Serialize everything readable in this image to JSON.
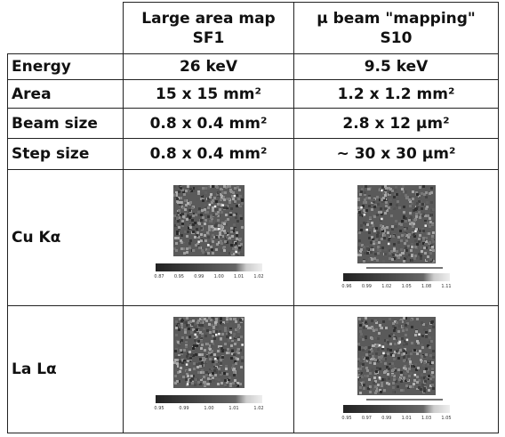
{
  "header": {
    "columns": [
      [
        "Large area map",
        "SF1"
      ],
      [
        "µ beam \"mapping\"",
        "S10"
      ]
    ]
  },
  "rows": [
    {
      "label": "Energy",
      "cells": [
        "26 keV",
        "9.5 keV"
      ]
    },
    {
      "label": "Area",
      "cells": [
        "15 x 15 mm²",
        "1.2 x 1.2 mm²"
      ]
    },
    {
      "label": "Beam size",
      "cells": [
        "0.8 x 0.4 mm²",
        "2.8 x 12 µm²"
      ]
    },
    {
      "label": "Step size",
      "cells": [
        "0.8 x 0.4 mm²",
        "~ 30 x 30 µm²"
      ]
    },
    {
      "label": "Cu Kα",
      "scales": [
        [
          "0.87",
          "0.95",
          "0.99",
          "1.00",
          "1.01",
          "1.02"
        ],
        [
          "0.96",
          "0.99",
          "1.02",
          "1.05",
          "1.08",
          "1.11"
        ]
      ]
    },
    {
      "label": "La Lα",
      "scales": [
        [
          "0.95",
          "0.99",
          "1.00",
          "1.01",
          "1.02"
        ],
        [
          "0.95",
          "0.97",
          "0.99",
          "1.01",
          "1.03",
          "1.05"
        ]
      ]
    }
  ]
}
